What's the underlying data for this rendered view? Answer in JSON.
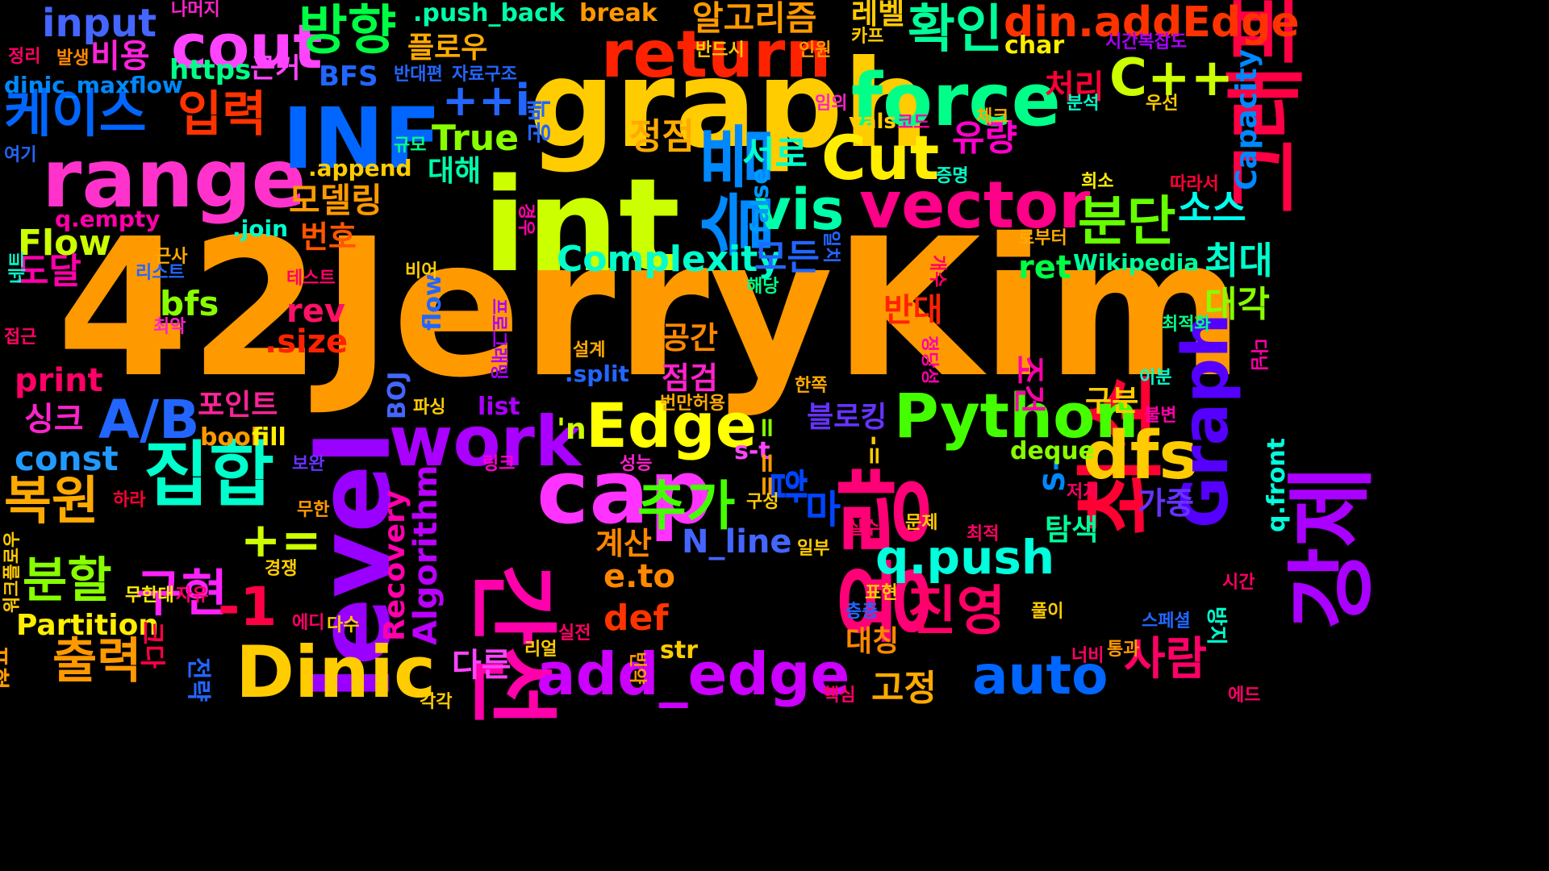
{
  "words": [
    {
      "text": "42JerryKim",
      "color": "#ff9900"
    },
    {
      "text": "int",
      "color": "#ccff00"
    },
    {
      "text": "graph",
      "color": "#ffcc00"
    },
    {
      "text": "range",
      "color": "#ff33cc"
    },
    {
      "text": "INF",
      "color": "#0066ff"
    },
    {
      "text": "level",
      "color": "#9900ff"
    },
    {
      "text": "간선",
      "color": "#ff00aa"
    },
    {
      "text": "cap",
      "color": "#ff33ff"
    },
    {
      "text": "용량",
      "color": "#ff0077"
    },
    {
      "text": "최소",
      "color": "#ff0033"
    },
    {
      "text": "강제",
      "color": "#aa00ff"
    },
    {
      "text": "그래프",
      "color": "#ff0044"
    },
    {
      "text": "슬픔",
      "color": "#0088ff"
    },
    {
      "text": "force",
      "color": "#00ff88"
    },
    {
      "text": "return",
      "color": "#ff2200"
    },
    {
      "text": "cout",
      "color": "#ff44ff"
    },
    {
      "text": "방향",
      "color": "#00ff44"
    },
    {
      "text": "work",
      "color": "#aa00ff"
    },
    {
      "text": "Dinic",
      "color": "#ffcc00"
    },
    {
      "text": "Edge",
      "color": "#ffff00"
    },
    {
      "text": "집합",
      "color": "#00ffcc"
    },
    {
      "text": "vector",
      "color": "#ff0088"
    },
    {
      "text": "vis",
      "color": "#00ffaa"
    },
    {
      "text": "Cut",
      "color": "#ffee00"
    },
    {
      "text": "Python",
      "color": "#44ff00"
    },
    {
      "text": "dfs",
      "color": "#ffcc00"
    },
    {
      "text": "분단",
      "color": "#66ff00"
    },
    {
      "text": "Graph",
      "color": "#5500ff"
    },
    {
      "text": "add_edge",
      "color": "#cc00ff"
    },
    {
      "text": "auto",
      "color": "#0066ff"
    },
    {
      "text": "확인",
      "color": "#00ff99"
    },
    {
      "text": "C++",
      "color": "#ccff00"
    },
    {
      "text": "din.addEdge",
      "color": "#ff3300"
    },
    {
      "text": "알고리즘",
      "color": "#ff9900"
    },
    {
      "text": "레벨",
      "color": "#ffcc00"
    },
    {
      "text": "input",
      "color": "#4466ff"
    },
    {
      "text": "비용",
      "color": "#ff22dd"
    },
    {
      "text": "케이스",
      "color": "#0066ff"
    },
    {
      "text": "입력",
      "color": "#ff3300"
    },
    {
      "text": "++i",
      "color": "#2266ff"
    },
    {
      "text": "True",
      "color": "#88ff00"
    },
    {
      "text": "정점",
      "color": "#ffaa00"
    },
    {
      "text": "유량",
      "color": "#ff00cc"
    },
    {
      "text": "서로",
      "color": "#00ffcc"
    },
    {
      "text": "소스",
      "color": "#00ffee"
    },
    {
      "text": "최대",
      "color": "#00ffcc"
    },
    {
      "text": "대각",
      "color": "#88ff00"
    },
    {
      "text": "처리",
      "color": "#ff0033"
    },
    {
      "text": "Capacity",
      "color": "#0088ff"
    },
    {
      "text": "구현",
      "color": "#ff22ff"
    },
    {
      "text": "추가",
      "color": "#44ff00"
    },
    {
      "text": "진영",
      "color": "#ff0066"
    },
    {
      "text": "q.push",
      "color": "#00ffdd"
    },
    {
      "text": "합",
      "color": "#0044ff"
    },
    {
      "text": "마",
      "color": "#0044ff"
    },
    {
      "text": "복원",
      "color": "#ffaa00"
    },
    {
      "text": "분할",
      "color": "#88ff00"
    },
    {
      "text": "출력",
      "color": "#ff9900"
    },
    {
      "text": "A/B",
      "color": "#2266ff"
    },
    {
      "text": "-1",
      "color": "#ff0044"
    },
    {
      "text": "+=",
      "color": "#ccff00"
    },
    {
      "text": "Complexity",
      "color": "#00ffcc"
    },
    {
      "text": "모든",
      "color": "#2266ff"
    },
    {
      "text": "Flow",
      "color": "#ccff00"
    },
    {
      "text": "도달",
      "color": "#ff00aa"
    },
    {
      "text": "bfs",
      "color": "#88ff00"
    },
    {
      "text": "rev",
      "color": "#ff1166"
    },
    {
      "text": ".size",
      "color": "#ff2200"
    },
    {
      "text": "print",
      "color": "#ff0066"
    },
    {
      "text": "싱크",
      "color": "#ff22cc"
    },
    {
      "text": "포인트",
      "color": "#ff2299"
    },
    {
      "text": "const",
      "color": "#2299ff"
    },
    {
      "text": "Partition",
      "color": "#ffee00"
    },
    {
      "text": "def",
      "color": "#ff3300"
    },
    {
      "text": "e.to",
      "color": "#ff8800"
    },
    {
      "text": "N_line",
      "color": "#4466ff"
    },
    {
      "text": "계산",
      "color": "#ff8800"
    },
    {
      "text": "다른",
      "color": "#ff44ff"
    },
    {
      "text": "고정",
      "color": "#ffaa00"
    },
    {
      "text": "사람",
      "color": "#ff0066"
    },
    {
      "text": "대칭",
      "color": "#ff8800"
    },
    {
      "text": "탐색",
      "color": "#00ff99"
    },
    {
      "text": "가중",
      "color": "#6633ff"
    },
    {
      "text": "구분",
      "color": "#ffcc00"
    },
    {
      "text": "블로킹",
      "color": "#6633ff"
    },
    {
      "text": "모델링",
      "color": "#ff9900"
    },
    {
      "text": "번호",
      "color": "#ff5500"
    },
    {
      "text": "반대",
      "color": "#ff2200"
    },
    {
      "text": "공간",
      "color": "#ff8800"
    },
    {
      "text": "점검",
      "color": "#ff22cc"
    },
    {
      "text": "ret",
      "color": "#00ff44"
    },
    {
      "text": "Wikipedia",
      "color": "#00ff99"
    },
    {
      "text": "조건",
      "color": "#ff00aa"
    },
    {
      "text": "Algorithm",
      "color": "#bb00ff"
    },
    {
      "text": "Recovery",
      "color": "#ff00aa"
    },
    {
      "text": "BOJ",
      "color": "#4466ff"
    },
    {
      "text": "S-",
      "color": "#0088ff"
    },
    {
      "text": "s-t",
      "color": "#ff44ff"
    },
    {
      "text": "=",
      "color": "#88ff00"
    },
    {
      "text": "==",
      "color": "#ff9900"
    },
    {
      "text": "-=",
      "color": "#ffcc00"
    },
    {
      "text": "'n",
      "color": "#ccff00"
    },
    {
      "text": "bool",
      "color": "#ff9900"
    },
    {
      "text": "fill",
      "color": "#ffee00"
    },
    {
      "text": "list",
      "color": "#aa00ff"
    },
    {
      "text": "deque",
      "color": "#88ff00"
    },
    {
      "text": "false",
      "color": "#0099ff"
    },
    {
      "text": "flow",
      "color": "#2266ff"
    },
    {
      "text": "str",
      "color": "#ffcc00"
    },
    {
      "text": "대해",
      "color": "#00ffaa"
    },
    {
      "text": "공백",
      "color": "#2266ff"
    },
    {
      "text": "근거",
      "color": "#ff44ff"
    },
    {
      "text": "https",
      "color": "#00ff88"
    },
    {
      "text": "BFS",
      "color": "#2266ff"
    },
    {
      "text": "플로우",
      "color": "#ffaa00"
    },
    {
      "text": ".push_back",
      "color": "#00ffaa"
    },
    {
      "text": "break",
      "color": "#ff9900"
    },
    {
      "text": "char",
      "color": "#ffee00"
    },
    {
      "text": "dinic_maxflow",
      "color": "#0088ff"
    },
    {
      "text": "q.empty",
      "color": "#ff00aa"
    },
    {
      "text": ".append",
      "color": "#ffcc00"
    },
    {
      "text": ".join",
      "color": "#00ffcc"
    },
    {
      "text": ".split",
      "color": "#2266ff"
    },
    {
      "text": "q.front",
      "color": "#00ffdd"
    },
    {
      "text": "반대편",
      "color": "#2266ff"
    },
    {
      "text": "자료구조",
      "color": "#2266ff"
    },
    {
      "text": "반드시",
      "color": "#ffcc00"
    },
    {
      "text": "인원",
      "color": "#ff9900"
    },
    {
      "text": "카프",
      "color": "#ffcc00"
    },
    {
      "text": "시간복잡도",
      "color": "#aa00ff"
    },
    {
      "text": "나머지",
      "color": "#ff22cc"
    },
    {
      "text": "정리",
      "color": "#ff0066"
    },
    {
      "text": "발생",
      "color": "#ff8800"
    },
    {
      "text": "여기",
      "color": "#2266ff"
    },
    {
      "text": "규모",
      "color": "#00ff88"
    },
    {
      "text": "코드",
      "color": "#ff00aa"
    },
    {
      "text": "vals",
      "color": "#ffcc00"
    },
    {
      "text": "체크",
      "color": "#ffaa00"
    },
    {
      "text": "분석",
      "color": "#00ffcc"
    },
    {
      "text": "우선",
      "color": "#ffcc00"
    },
    {
      "text": "임의",
      "color": "#ff22cc"
    },
    {
      "text": "증명",
      "color": "#00ffcc"
    },
    {
      "text": "희소",
      "color": "#ffee00"
    },
    {
      "text": "따라서",
      "color": "#ff0033"
    },
    {
      "text": "로부터",
      "color": "#ffaa00"
    },
    {
      "text": "일치",
      "color": "#2266ff"
    },
    {
      "text": "경우",
      "color": "#ff00aa"
    },
    {
      "text": "개수",
      "color": "#ff0066"
    },
    {
      "text": "비어",
      "color": "#ffcc00"
    },
    {
      "text": "리스트",
      "color": "#2266ff"
    },
    {
      "text": "근사",
      "color": "#ffaa00"
    },
    {
      "text": "테스트",
      "color": "#ff0066"
    },
    {
      "text": "해당",
      "color": "#00ff88"
    },
    {
      "text": "네트",
      "color": "#00ffcc"
    },
    {
      "text": "최악",
      "color": "#ff22cc"
    },
    {
      "text": "접근",
      "color": "#ff0066"
    },
    {
      "text": "프로그래밍",
      "color": "#aa00ff"
    },
    {
      "text": "설계",
      "color": "#ffaa00"
    },
    {
      "text": "정당성",
      "color": "#ff00aa"
    },
    {
      "text": "한쪽",
      "color": "#ffaa00"
    },
    {
      "text": "이분",
      "color": "#00ffcc"
    },
    {
      "text": "최적화",
      "color": "#00ff88"
    },
    {
      "text": "다님",
      "color": "#ff00aa"
    },
    {
      "text": "파싱",
      "color": "#ffcc00"
    },
    {
      "text": "번만허용",
      "color": "#ffaa00"
    },
    {
      "text": "불변",
      "color": "#ff00aa"
    },
    {
      "text": "링크",
      "color": "#ff00cc"
    },
    {
      "text": "성능",
      "color": "#ff22cc"
    },
    {
      "text": "보완",
      "color": "#6633ff"
    },
    {
      "text": "하라",
      "color": "#ff0033"
    },
    {
      "text": "구성",
      "color": "#ffcc00"
    },
    {
      "text": "무한",
      "color": "#ff9900"
    },
    {
      "text": "워크플로우",
      "color": "#ffcc00"
    },
    {
      "text": "경쟁",
      "color": "#ffcc00"
    },
    {
      "text": "일부",
      "color": "#ffcc00"
    },
    {
      "text": "실수",
      "color": "#ff0066"
    },
    {
      "text": "문제",
      "color": "#ffcc00"
    },
    {
      "text": "저지",
      "color": "#ff0066"
    },
    {
      "text": "최적",
      "color": "#ff0066"
    },
    {
      "text": "무한대",
      "color": "#ffee00"
    },
    {
      "text": "자유",
      "color": "#ff0066"
    },
    {
      "text": "표현",
      "color": "#ffcc00"
    },
    {
      "text": "층층",
      "color": "#2266ff"
    },
    {
      "text": "풀이",
      "color": "#ffcc00"
    },
    {
      "text": "시간",
      "color": "#ff0066"
    },
    {
      "text": "에디",
      "color": "#ff0066"
    },
    {
      "text": "다수",
      "color": "#ffcc00"
    },
    {
      "text": "스페셜",
      "color": "#2266ff"
    },
    {
      "text": "방지",
      "color": "#00ffcc"
    },
    {
      "text": "실전",
      "color": "#ff0066"
    },
    {
      "text": "리얼",
      "color": "#ffcc00"
    },
    {
      "text": "너비",
      "color": "#ff0066"
    },
    {
      "text": "통과",
      "color": "#ff9900"
    },
    {
      "text": "핵심",
      "color": "#ff0066"
    },
    {
      "text": "각각",
      "color": "#ffcc00"
    },
    {
      "text": "에드",
      "color": "#ff0066"
    },
    {
      "text": "전략",
      "color": "#2266ff"
    },
    {
      "text": "빈약",
      "color": "#ff9900"
    },
    {
      "text": "크다",
      "color": "#ff0044"
    },
    {
      "text": "표현",
      "color": "#ff9900"
    }
  ]
}
